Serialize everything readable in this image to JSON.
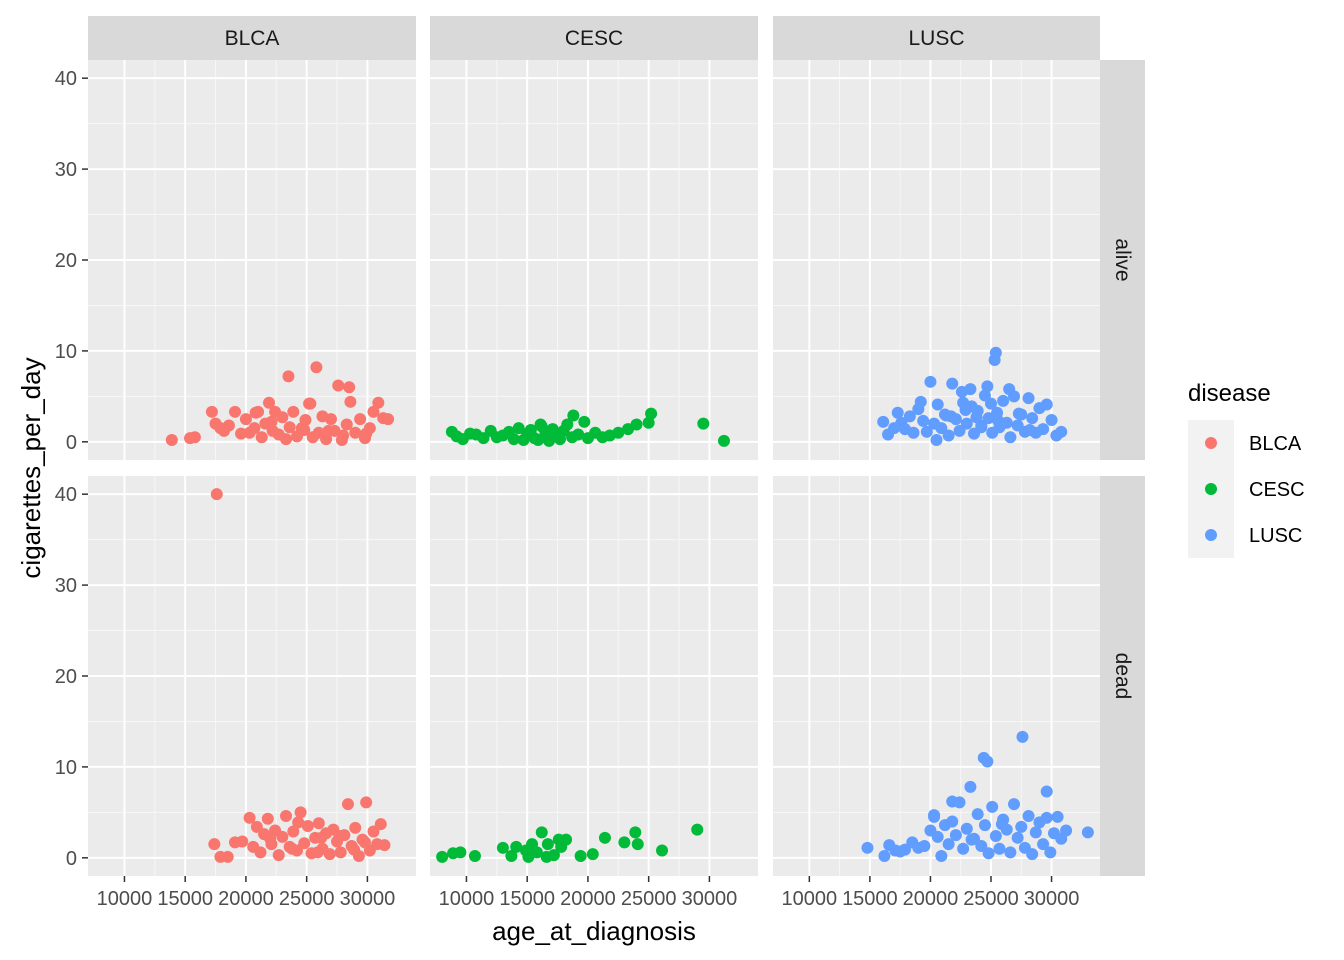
{
  "chart_data": {
    "type": "scatter",
    "xlabel": "age_at_diagnosis",
    "ylabel": "cigarettes_per_day",
    "xlim": [
      7000,
      34000
    ],
    "ylim": [
      -2,
      42
    ],
    "x_ticks": [
      10000,
      15000,
      20000,
      25000,
      30000
    ],
    "x_tick_labels": [
      "10000",
      "15000",
      "20000",
      "25000",
      "30000"
    ],
    "y_ticks": [
      0,
      10,
      20,
      30,
      40
    ],
    "y_tick_labels": [
      "0",
      "10",
      "20",
      "30",
      "40"
    ],
    "grid": true,
    "legend": {
      "title": "disease",
      "position": "right",
      "entries": [
        {
          "label": "BLCA",
          "color": "#F8766D"
        },
        {
          "label": "CESC",
          "color": "#00BA38"
        },
        {
          "label": "LUSC",
          "color": "#619CFF"
        }
      ]
    },
    "facet_columns": [
      "BLCA",
      "CESC",
      "LUSC"
    ],
    "facet_rows": [
      "alive",
      "dead"
    ],
    "series": [
      {
        "disease": "BLCA",
        "vital_status": "alive",
        "x": [
          13900,
          15400,
          15800,
          17200,
          17500,
          17900,
          18200,
          18600,
          19100,
          19600,
          20000,
          20300,
          20700,
          21000,
          21300,
          21600,
          21900,
          22200,
          22400,
          22700,
          23000,
          23300,
          23600,
          23900,
          24200,
          24600,
          24900,
          25200,
          25500,
          25800,
          26000,
          26300,
          26600,
          27000,
          27300,
          27600,
          28000,
          28300,
          28600,
          29000,
          29400,
          29800,
          30200,
          30500,
          30900,
          31300,
          31700,
          22100,
          23500,
          24800,
          26800,
          28500,
          29900,
          20800,
          25300,
          27900
        ],
        "y": [
          0.2,
          0.4,
          0.5,
          3.3,
          2.0,
          1.5,
          1.2,
          1.8,
          3.3,
          0.9,
          2.5,
          1.0,
          1.5,
          3.3,
          0.5,
          2.0,
          4.3,
          1.2,
          3.3,
          0.8,
          2.7,
          0.3,
          1.6,
          3.3,
          0.6,
          1.5,
          2.4,
          4.2,
          0.5,
          8.2,
          1.0,
          2.8,
          0.3,
          2.5,
          1.2,
          6.2,
          0.7,
          1.9,
          4.4,
          1.0,
          2.5,
          0.4,
          1.5,
          3.3,
          4.3,
          2.6,
          2.5,
          2.2,
          7.2,
          1.3,
          1.2,
          6.0,
          0.9,
          3.2,
          4.2,
          0.2
        ]
      },
      {
        "disease": "CESC",
        "vital_status": "alive",
        "x": [
          8800,
          9200,
          9700,
          10300,
          10800,
          11400,
          12000,
          12500,
          13000,
          13500,
          13900,
          14300,
          14700,
          15000,
          15300,
          15600,
          15900,
          16200,
          16500,
          16800,
          17100,
          17400,
          17700,
          18000,
          18300,
          18700,
          19200,
          19700,
          20000,
          20600,
          21200,
          21800,
          22500,
          23300,
          24000,
          25000,
          25200,
          29500,
          31200,
          16100,
          18800
        ],
        "y": [
          1.1,
          0.6,
          0.3,
          0.9,
          0.8,
          0.4,
          1.2,
          0.5,
          0.7,
          1.1,
          0.3,
          1.5,
          0.2,
          0.9,
          1.3,
          0.4,
          0.2,
          1.7,
          0.9,
          0.1,
          1.4,
          0.8,
          0.3,
          1.2,
          1.9,
          0.5,
          0.8,
          2.2,
          0.4,
          1.0,
          0.5,
          0.7,
          1.0,
          1.4,
          1.9,
          2.1,
          3.1,
          2.0,
          0.1,
          1.9,
          2.9
        ]
      },
      {
        "disease": "LUSC",
        "vital_status": "alive",
        "x": [
          16100,
          16500,
          17000,
          17300,
          17600,
          17900,
          18300,
          18600,
          19000,
          19400,
          19700,
          20000,
          20300,
          20600,
          20900,
          21200,
          21500,
          21800,
          22100,
          22400,
          22700,
          23000,
          23300,
          23600,
          23900,
          24200,
          24500,
          24800,
          25100,
          25300,
          25500,
          25700,
          26000,
          26300,
          26600,
          26900,
          27200,
          27500,
          27800,
          28100,
          28400,
          28700,
          29000,
          29300,
          29600,
          30000,
          30400,
          30800,
          20500,
          21700,
          22600,
          23400,
          24200,
          25000,
          25800,
          26500,
          27300,
          28200,
          19200,
          24700,
          23800,
          22900,
          21300,
          25400,
          25600
        ],
        "y": [
          2.2,
          0.8,
          1.5,
          3.2,
          2.1,
          1.4,
          2.8,
          1.0,
          3.6,
          2.3,
          1.1,
          6.6,
          2.0,
          4.1,
          1.5,
          3.0,
          0.7,
          6.4,
          2.5,
          1.2,
          4.3,
          2.0,
          5.8,
          0.9,
          3.4,
          1.8,
          5.1,
          2.6,
          1.0,
          9.0,
          3.2,
          1.6,
          4.5,
          2.1,
          0.5,
          5.0,
          1.8,
          3.0,
          1.1,
          4.8,
          2.6,
          1.0,
          3.7,
          1.4,
          4.1,
          2.4,
          0.7,
          1.1,
          0.2,
          2.8,
          5.5,
          3.9,
          1.6,
          4.2,
          2.0,
          5.8,
          3.1,
          1.3,
          4.4,
          6.1,
          2.7,
          3.5,
          2.9,
          9.8,
          2.3
        ]
      },
      {
        "disease": "BLCA",
        "vital_status": "dead",
        "x": [
          17600,
          17400,
          17900,
          18500,
          19100,
          19700,
          20300,
          20600,
          20900,
          21200,
          21500,
          21800,
          22100,
          22400,
          22700,
          23000,
          23300,
          23600,
          23900,
          24200,
          24500,
          24800,
          25100,
          25400,
          25700,
          26000,
          26300,
          26600,
          26900,
          27200,
          27500,
          27800,
          28100,
          28400,
          28700,
          29000,
          29300,
          29600,
          29900,
          30200,
          30500,
          30800,
          31100,
          31400,
          22000,
          23800,
          25900,
          27700,
          29800,
          24300,
          26200,
          28900
        ],
        "y": [
          40.0,
          1.5,
          0.1,
          0.1,
          1.7,
          1.8,
          4.4,
          1.2,
          3.4,
          0.6,
          2.6,
          4.3,
          1.5,
          3.0,
          0.3,
          2.3,
          4.6,
          1.2,
          2.9,
          0.8,
          5.0,
          1.6,
          3.5,
          0.5,
          2.2,
          3.8,
          1.0,
          2.7,
          0.4,
          3.1,
          1.8,
          0.6,
          2.5,
          5.9,
          1.3,
          3.3,
          0.2,
          2.0,
          6.1,
          0.8,
          2.9,
          1.5,
          3.7,
          1.4,
          2.1,
          1.0,
          0.6,
          2.4,
          1.7,
          3.9,
          2.2,
          0.9
        ]
      },
      {
        "disease": "CESC",
        "vital_status": "dead",
        "x": [
          8000,
          8900,
          9500,
          10700,
          13000,
          13700,
          14100,
          14900,
          15400,
          15800,
          16200,
          16700,
          17200,
          17600,
          17800,
          18200,
          19400,
          20400,
          21400,
          23000,
          23900,
          24100,
          26100,
          29000,
          15100,
          16600
        ],
        "y": [
          0.1,
          0.5,
          0.6,
          0.2,
          1.1,
          0.2,
          1.2,
          0.8,
          1.5,
          0.6,
          2.8,
          1.5,
          0.3,
          2.0,
          1.2,
          2.0,
          0.2,
          0.4,
          2.2,
          1.7,
          2.8,
          1.5,
          0.8,
          3.1,
          0.1,
          0.1
        ]
      },
      {
        "disease": "LUSC",
        "vital_status": "dead",
        "x": [
          14800,
          16200,
          16600,
          17100,
          17500,
          17900,
          18500,
          19000,
          19500,
          20000,
          20300,
          20600,
          20900,
          21200,
          21500,
          21800,
          22100,
          22400,
          22700,
          23000,
          23300,
          23600,
          23900,
          24200,
          24500,
          24800,
          25100,
          25400,
          25700,
          26000,
          26300,
          26600,
          26900,
          27200,
          27500,
          27800,
          28100,
          28400,
          28700,
          29000,
          29300,
          29600,
          29900,
          30200,
          30500,
          30800,
          31200,
          33000,
          24400,
          24700,
          27600,
          29600,
          23400,
          25900,
          21800,
          20300
        ],
        "y": [
          1.1,
          0.2,
          1.4,
          0.8,
          0.7,
          0.9,
          1.7,
          1.1,
          1.3,
          3.0,
          4.5,
          2.3,
          0.2,
          3.6,
          1.5,
          4.0,
          2.5,
          6.1,
          1.0,
          3.2,
          7.8,
          2.1,
          4.8,
          1.3,
          3.6,
          0.5,
          5.6,
          2.4,
          1.0,
          4.2,
          3.1,
          0.6,
          5.9,
          2.2,
          3.4,
          1.1,
          4.6,
          0.4,
          2.8,
          3.9,
          1.5,
          4.4,
          0.6,
          2.7,
          4.5,
          2.1,
          3.0,
          2.8,
          11.0,
          10.6,
          13.3,
          7.3,
          2.0,
          3.7,
          6.2,
          4.7
        ]
      }
    ]
  }
}
